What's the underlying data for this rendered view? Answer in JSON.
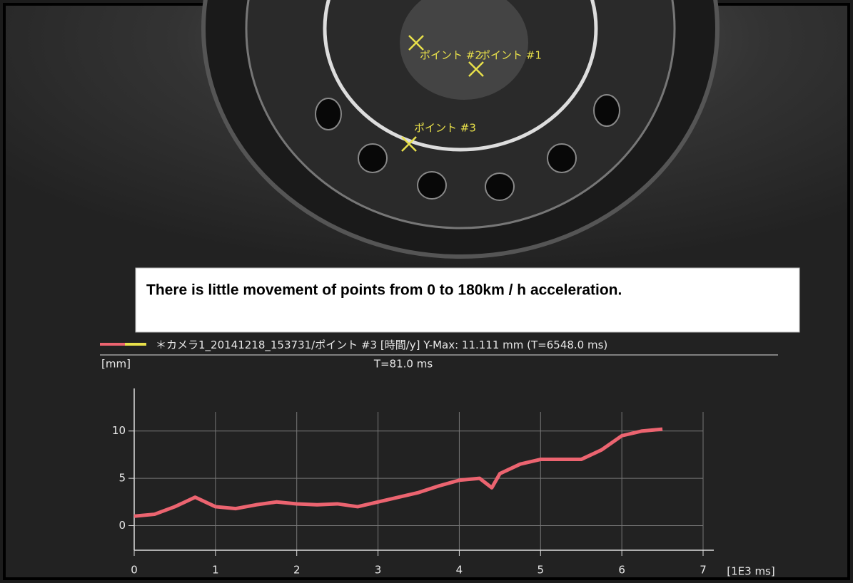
{
  "photo": {
    "points": [
      "ポイント #2",
      "ポイント #1",
      "ポイント #3"
    ]
  },
  "callout": {
    "text": "There is little movement of points from 0 to 180km / h acceleration."
  },
  "chart_data": {
    "type": "line",
    "annotation": "Y-Max: 11.111 mm (T=6548.0 ms)",
    "cursor_label": "T=81.0 ms",
    "ylabel": "[mm]",
    "xlabel": "[1E3 ms]",
    "x": [
      0,
      0.25,
      0.5,
      0.75,
      1,
      1.25,
      1.5,
      1.75,
      2,
      2.25,
      2.5,
      2.75,
      3,
      3.25,
      3.5,
      3.75,
      4,
      4.25,
      4.4,
      4.5,
      4.75,
      5,
      5.25,
      5.5,
      5.75,
      6,
      6.25,
      6.5
    ],
    "series": [
      {
        "name": "＊カメラ1_20141218_153731/ポイント #3 [時間/y]",
        "color": "#ec6470",
        "values": [
          1,
          1.2,
          2,
          3,
          2,
          1.8,
          2.2,
          2.5,
          2.3,
          2.2,
          2.3,
          2,
          2.5,
          3,
          3.5,
          4.2,
          4.8,
          5,
          4,
          5.5,
          6.5,
          7,
          7,
          7,
          8,
          9.5,
          10,
          10.2
        ]
      }
    ],
    "xlim": [
      0,
      7
    ],
    "ylim": [
      -2.6,
      14.5
    ],
    "xticks": [
      0,
      1,
      2,
      3,
      4,
      5,
      6,
      7
    ],
    "yticks": [
      0,
      5,
      10
    ],
    "grid": true
  }
}
